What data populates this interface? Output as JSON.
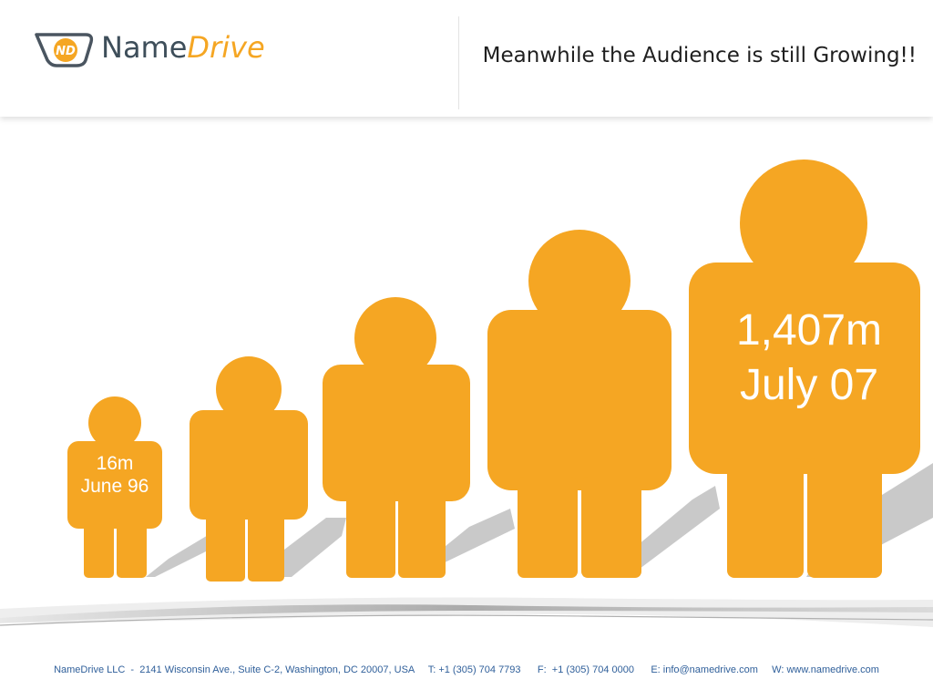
{
  "header": {
    "logo": {
      "mark_text": "ND",
      "name": "Name",
      "drive": "Drive",
      "colors": {
        "name": "#3e4e5a",
        "accent": "#f5a623"
      }
    },
    "title": "Meanwhile the Audience is still Growing!!"
  },
  "figures": {
    "color": "#f5a623",
    "shadow_color": "#c8c8c8",
    "first": {
      "value": "16m",
      "date": "June 96"
    },
    "last": {
      "value": "1,407m",
      "date": "July 07"
    }
  },
  "footer": {
    "text": "NameDrive LLC  -  2141 Wisconsin Ave., Suite C-2, Washington, DC 20007, USA     T: +1 (305) 704 7793      F:  +1 (305) 704 0000      E: info@namedrive.com     W: www.namedrive.com"
  }
}
